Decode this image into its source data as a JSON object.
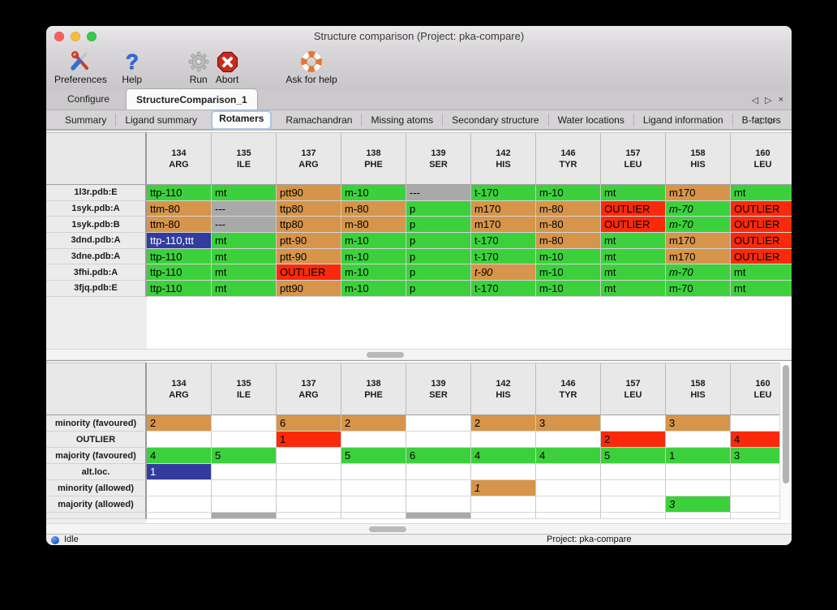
{
  "window": {
    "title": "Structure comparison (Project: pka-compare)"
  },
  "traffic_lights": [
    {
      "name": "close-button",
      "color": "#f4615a"
    },
    {
      "name": "minimize-button",
      "color": "#f6bd3e"
    },
    {
      "name": "zoom-button",
      "color": "#39c84c"
    }
  ],
  "toolbar": {
    "items": [
      {
        "name": "preferences",
        "label": "Preferences",
        "icon": "tools-icon"
      },
      {
        "name": "help",
        "label": "Help",
        "icon": "question-icon"
      },
      {
        "name": "run",
        "label": "Run",
        "icon": "gear-icon"
      },
      {
        "name": "abort",
        "label": "Abort",
        "icon": "stop-icon"
      },
      {
        "name": "ask-for-help",
        "label": "Ask for help",
        "icon": "lifebuoy-icon"
      }
    ]
  },
  "tab_bar": {
    "tabs": [
      "Configure",
      "StructureComparison_1"
    ],
    "selected": "StructureComparison_1",
    "nav_left": "◁",
    "nav_right": "▷",
    "close": "×"
  },
  "subtab_bar": {
    "tabs": [
      "Summary",
      "Ligand summary",
      "Rotamers",
      "Ramachandran",
      "Missing atoms",
      "Secondary structure",
      "Water locations",
      "Ligand information",
      "B-factors"
    ],
    "selected": "Rotamers",
    "nav_left": "◁",
    "nav_right": "▷"
  },
  "colors": {
    "favoured_green": "#3cd13c",
    "minority_tan": "#d6954a",
    "outlier_red": "#f92a0c",
    "missing_gray": "#a9a9a9",
    "selection_blue": "#323c9e"
  },
  "columns": [
    {
      "num": "134",
      "res": "ARG"
    },
    {
      "num": "135",
      "res": "ILE"
    },
    {
      "num": "137",
      "res": "ARG"
    },
    {
      "num": "138",
      "res": "PHE"
    },
    {
      "num": "139",
      "res": "SER"
    },
    {
      "num": "142",
      "res": "HIS"
    },
    {
      "num": "146",
      "res": "TYR"
    },
    {
      "num": "157",
      "res": "LEU"
    },
    {
      "num": "158",
      "res": "HIS"
    },
    {
      "num": "160",
      "res": "LEU"
    }
  ],
  "top_table": {
    "rows": [
      {
        "label": "1l3r.pdb:E",
        "cells": [
          [
            "ttp-110",
            "g"
          ],
          [
            "mt",
            "g"
          ],
          [
            "ptt90",
            "t"
          ],
          [
            "m-10",
            "g"
          ],
          [
            "---",
            "x"
          ],
          [
            "t-170",
            "g"
          ],
          [
            "m-10",
            "g"
          ],
          [
            "mt",
            "g"
          ],
          [
            "m170",
            "t"
          ],
          [
            "mt",
            "g"
          ]
        ]
      },
      {
        "label": "1syk.pdb:A",
        "cells": [
          [
            "ttm-80",
            "t"
          ],
          [
            "---",
            "x"
          ],
          [
            "ttp80",
            "t"
          ],
          [
            "m-80",
            "t"
          ],
          [
            "p",
            "g"
          ],
          [
            "m170",
            "t"
          ],
          [
            "m-80",
            "t"
          ],
          [
            "OUTLIER",
            "r"
          ],
          [
            "m-70",
            "gi"
          ],
          [
            "OUTLIER",
            "r"
          ]
        ]
      },
      {
        "label": "1syk.pdb:B",
        "cells": [
          [
            "ttm-80",
            "t"
          ],
          [
            "---",
            "x"
          ],
          [
            "ttp80",
            "t"
          ],
          [
            "m-80",
            "t"
          ],
          [
            "p",
            "g"
          ],
          [
            "m170",
            "t"
          ],
          [
            "m-80",
            "t"
          ],
          [
            "OUTLIER",
            "r"
          ],
          [
            "m-70",
            "gi"
          ],
          [
            "OUTLIER",
            "r"
          ]
        ]
      },
      {
        "label": "3dnd.pdb:A",
        "cells": [
          [
            "ttp-110,ttt",
            "b"
          ],
          [
            "mt",
            "g"
          ],
          [
            "ptt-90",
            "t"
          ],
          [
            "m-10",
            "g"
          ],
          [
            "p",
            "g"
          ],
          [
            "t-170",
            "g"
          ],
          [
            "m-80",
            "t"
          ],
          [
            "mt",
            "g"
          ],
          [
            "m170",
            "t"
          ],
          [
            "OUTLIER",
            "r"
          ]
        ]
      },
      {
        "label": "3dne.pdb:A",
        "cells": [
          [
            "ttp-110",
            "g"
          ],
          [
            "mt",
            "g"
          ],
          [
            "ptt-90",
            "t"
          ],
          [
            "m-10",
            "g"
          ],
          [
            "p",
            "g"
          ],
          [
            "t-170",
            "g"
          ],
          [
            "m-10",
            "g"
          ],
          [
            "mt",
            "g"
          ],
          [
            "m170",
            "t"
          ],
          [
            "OUTLIER",
            "r"
          ]
        ]
      },
      {
        "label": "3fhi.pdb:A",
        "cells": [
          [
            "ttp-110",
            "g"
          ],
          [
            "mt",
            "g"
          ],
          [
            "OUTLIER",
            "r"
          ],
          [
            "m-10",
            "g"
          ],
          [
            "p",
            "g"
          ],
          [
            "t-90",
            "ti"
          ],
          [
            "m-10",
            "g"
          ],
          [
            "mt",
            "g"
          ],
          [
            "m-70",
            "gi"
          ],
          [
            "mt",
            "g"
          ]
        ]
      },
      {
        "label": "3fjq.pdb:E",
        "cells": [
          [
            "ttp-110",
            "g"
          ],
          [
            "mt",
            "g"
          ],
          [
            "ptt90",
            "t"
          ],
          [
            "m-10",
            "g"
          ],
          [
            "p",
            "g"
          ],
          [
            "t-170",
            "g"
          ],
          [
            "m-10",
            "g"
          ],
          [
            "mt",
            "g"
          ],
          [
            "m-70",
            "g"
          ],
          [
            "mt",
            "g"
          ]
        ]
      }
    ]
  },
  "bottom_table": {
    "rows": [
      {
        "label": "minority (favoured)",
        "cells": [
          [
            "2",
            "t"
          ],
          [
            "",
            ""
          ],
          [
            "6",
            "t"
          ],
          [
            "2",
            "t"
          ],
          [
            "",
            ""
          ],
          [
            "2",
            "t"
          ],
          [
            "3",
            "t"
          ],
          [
            "",
            ""
          ],
          [
            "3",
            "t"
          ],
          [
            "",
            ""
          ]
        ]
      },
      {
        "label": "OUTLIER",
        "cells": [
          [
            "",
            ""
          ],
          [
            "",
            ""
          ],
          [
            "1",
            "r"
          ],
          [
            "",
            ""
          ],
          [
            "",
            ""
          ],
          [
            "",
            ""
          ],
          [
            "",
            ""
          ],
          [
            "2",
            "r"
          ],
          [
            "",
            ""
          ],
          [
            "4",
            "r"
          ]
        ]
      },
      {
        "label": "majority (favoured)",
        "cells": [
          [
            "4",
            "g"
          ],
          [
            "5",
            "g"
          ],
          [
            "",
            ""
          ],
          [
            "5",
            "g"
          ],
          [
            "6",
            "g"
          ],
          [
            "4",
            "g"
          ],
          [
            "4",
            "g"
          ],
          [
            "5",
            "g"
          ],
          [
            "1",
            "g"
          ],
          [
            "3",
            "g"
          ]
        ]
      },
      {
        "label": "alt.loc.",
        "cells": [
          [
            "1",
            "b"
          ],
          [
            "",
            ""
          ],
          [
            "",
            ""
          ],
          [
            "",
            ""
          ],
          [
            "",
            ""
          ],
          [
            "",
            ""
          ],
          [
            "",
            ""
          ],
          [
            "",
            ""
          ],
          [
            "",
            ""
          ],
          [
            "",
            ""
          ]
        ]
      },
      {
        "label": "minority (allowed)",
        "cells": [
          [
            "",
            ""
          ],
          [
            "",
            ""
          ],
          [
            "",
            ""
          ],
          [
            "",
            ""
          ],
          [
            "",
            ""
          ],
          [
            "1",
            "ti"
          ],
          [
            "",
            ""
          ],
          [
            "",
            ""
          ],
          [
            "",
            ""
          ],
          [
            "",
            ""
          ]
        ]
      },
      {
        "label": "majority (allowed)",
        "cells": [
          [
            "",
            ""
          ],
          [
            "",
            ""
          ],
          [
            "",
            ""
          ],
          [
            "",
            ""
          ],
          [
            "",
            ""
          ],
          [
            "",
            ""
          ],
          [
            "",
            ""
          ],
          [
            "",
            ""
          ],
          [
            "3",
            "gi"
          ],
          [
            "",
            ""
          ]
        ]
      }
    ],
    "partial_row": {
      "states": [
        "",
        "x",
        "",
        "",
        "x",
        "",
        "",
        "",
        "",
        ""
      ]
    }
  },
  "status_bar": {
    "status": "Idle",
    "project": "Project: pka-compare"
  }
}
